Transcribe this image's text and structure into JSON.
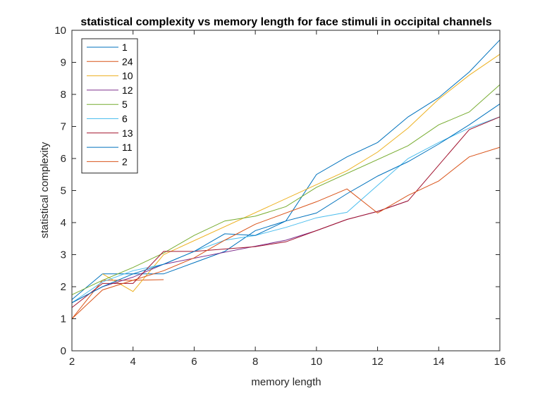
{
  "chart_data": {
    "type": "line",
    "title": "statistical complexity vs memory length for face stimuli in occipital channels",
    "xlabel": "memory length",
    "ylabel": "statistical complexity",
    "xlim": [
      2,
      16
    ],
    "ylim": [
      0,
      10
    ],
    "xticks": [
      2,
      4,
      6,
      8,
      10,
      12,
      14,
      16
    ],
    "yticks": [
      0,
      1,
      2,
      3,
      4,
      5,
      6,
      7,
      8,
      9,
      10
    ],
    "grid": false,
    "legend_position": "top-left",
    "series": [
      {
        "name": "1",
        "color": "#0072BD",
        "x": [
          2,
          3,
          4,
          5,
          6,
          7,
          8,
          9,
          10,
          11,
          12,
          13,
          14,
          15,
          16
        ],
        "y": [
          1.6,
          2.4,
          2.4,
          2.4,
          2.75,
          3.1,
          3.75,
          4.05,
          5.5,
          6.05,
          6.5,
          7.3,
          7.9,
          8.7,
          9.7
        ]
      },
      {
        "name": "24",
        "color": "#D95319",
        "x": [
          2,
          3,
          4,
          5
        ],
        "y": [
          1.0,
          2.2,
          2.2,
          2.22
        ]
      },
      {
        "name": "10",
        "color": "#EDB120",
        "x": [
          3,
          4,
          5,
          11,
          12,
          13,
          14,
          15,
          16
        ],
        "y": [
          2.4,
          1.85,
          3.0,
          5.62,
          6.2,
          6.95,
          7.85,
          8.6,
          9.25
        ]
      },
      {
        "name": "12",
        "color": "#7E2F8E",
        "x": [
          2,
          3,
          4,
          5,
          9,
          10,
          11,
          12,
          13
        ],
        "y": [
          1.5,
          2.0,
          2.3,
          2.7,
          3.45,
          3.75,
          4.1,
          4.35,
          4.68
        ]
      },
      {
        "name": "5",
        "color": "#77AC30",
        "x": [
          2,
          3,
          4,
          5,
          6,
          7,
          8,
          9,
          10,
          13,
          14,
          15,
          16
        ],
        "y": [
          1.75,
          2.2,
          2.6,
          3.05,
          3.6,
          4.05,
          4.2,
          4.5,
          5.1,
          6.4,
          7.05,
          7.45,
          8.3
        ]
      },
      {
        "name": "6",
        "color": "#4DBEEE",
        "x": [
          2,
          3,
          4,
          5,
          6,
          7,
          8,
          9,
          10,
          11,
          13,
          14,
          15,
          16
        ],
        "y": [
          1.5,
          2.15,
          2.5,
          2.7,
          3.1,
          3.45,
          3.6,
          3.85,
          4.15,
          4.32,
          6.0,
          6.5,
          6.95,
          7.3
        ]
      },
      {
        "name": "13",
        "color": "#A2142F",
        "x": [
          2,
          3,
          4,
          5,
          6,
          8,
          9,
          10,
          11,
          12,
          13,
          15,
          16
        ],
        "y": [
          1.35,
          2.1,
          2.1,
          3.1,
          3.1,
          3.25,
          3.4,
          3.75,
          4.1,
          4.35,
          4.68,
          6.9,
          7.3
        ]
      },
      {
        "name": "11",
        "color": "#0072BD",
        "x": [
          2,
          3,
          4,
          5,
          6,
          7,
          8,
          9,
          10,
          11,
          12,
          13,
          14,
          15,
          16
        ],
        "y": [
          1.5,
          2.0,
          2.4,
          2.7,
          3.1,
          3.65,
          3.6,
          4.05,
          4.3,
          4.9,
          5.45,
          5.9,
          6.45,
          7.05,
          7.7
        ]
      },
      {
        "name": "2",
        "color": "#D95319",
        "x": [
          2,
          3,
          4,
          5,
          6,
          7,
          8,
          10,
          11,
          12,
          13,
          14,
          15,
          16
        ],
        "y": [
          1.0,
          1.9,
          2.2,
          2.5,
          2.9,
          3.45,
          3.95,
          4.65,
          5.05,
          4.3,
          4.85,
          5.3,
          6.05,
          6.35
        ]
      }
    ]
  }
}
